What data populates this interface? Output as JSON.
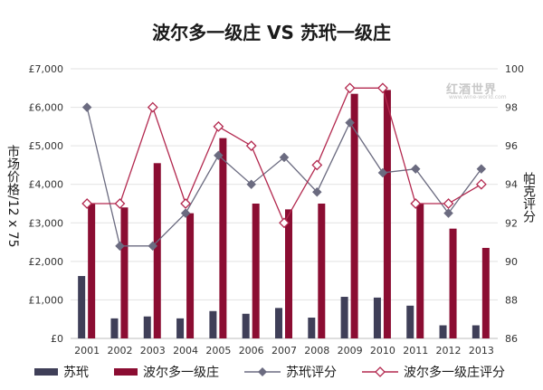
{
  "chart_data": {
    "type": "bar",
    "title": "波尔多一级庄 VS 苏玳一级庄",
    "ylabel": "市场价格/12 x 75",
    "y2label": "帕克评分",
    "categories": [
      "2001",
      "2002",
      "2003",
      "2004",
      "2005",
      "2006",
      "2007",
      "2008",
      "2009",
      "2010",
      "2011",
      "2012",
      "2013"
    ],
    "ylim": [
      0,
      7000
    ],
    "y_ticks": [
      "£0",
      "£1,000",
      "£2,000",
      "£3,000",
      "£4,000",
      "£5,000",
      "£6,000",
      "£7,000"
    ],
    "y2lim": [
      86,
      100
    ],
    "y2_ticks": [
      "86",
      "88",
      "90",
      "92",
      "94",
      "96",
      "98",
      "100"
    ],
    "series": [
      {
        "name": "苏玳",
        "kind": "bar",
        "axis": "left",
        "color": "#3f3f58",
        "values": [
          1620,
          520,
          570,
          520,
          710,
          640,
          790,
          540,
          1080,
          1060,
          850,
          340,
          340
        ]
      },
      {
        "name": "波尔多一级庄",
        "kind": "bar",
        "axis": "left",
        "color": "#8b0d32",
        "values": [
          3500,
          3400,
          4550,
          3250,
          5200,
          3500,
          3350,
          3500,
          6350,
          6450,
          3500,
          2850,
          2350
        ]
      },
      {
        "name": "苏玳评分",
        "kind": "line",
        "axis": "right",
        "color": "#6b6b80",
        "marker": "diamond-filled",
        "values": [
          98,
          90.8,
          90.8,
          92.5,
          95.5,
          94,
          95.4,
          93.6,
          97.2,
          94.6,
          94.8,
          92.5,
          94.8
        ]
      },
      {
        "name": "波尔多一级庄评分",
        "kind": "line",
        "axis": "right",
        "color": "#b3294f",
        "marker": "diamond-open",
        "values": [
          93,
          93,
          98,
          93,
          97,
          96,
          92,
          95,
          99,
          99,
          93,
          93,
          94
        ]
      }
    ],
    "grid": true,
    "legend": "bottom"
  },
  "watermark": {
    "text": "红酒世界",
    "sub": "www.wine-world.com"
  }
}
